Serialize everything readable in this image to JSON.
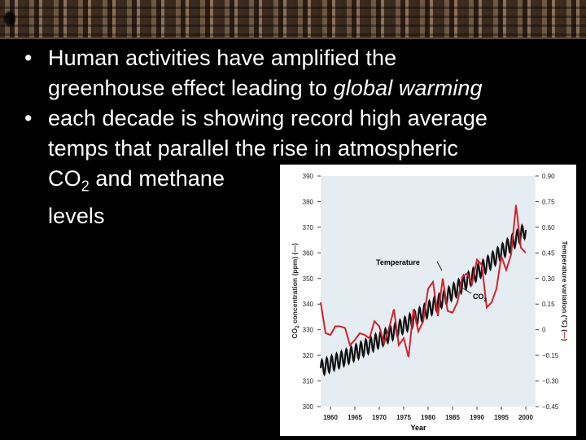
{
  "slide": {
    "bullets": [
      {
        "marker": "•",
        "line1": "Human activities have amplified the",
        "line2_plain": "greenhouse effect leading to ",
        "line2_italic": "global warming"
      },
      {
        "marker": "•",
        "line1": "each decade is showing record high average",
        "line2": "temps that parallel the rise in atmospheric",
        "line3_pre": "CO",
        "line3_sub": "2",
        "line3_post": " and methane",
        "line4": "levels"
      }
    ]
  },
  "chart_data": {
    "type": "line",
    "xlabel": "Year",
    "ylabel_left": "CO2 concentration (ppm) (—)",
    "ylabel_left_parts": [
      "CO",
      "2",
      " concentration (ppm) (",
      "—",
      ")"
    ],
    "ylabel_right_parts": [
      "Temperature variation (°C) (",
      "—",
      ")"
    ],
    "x_ticks": [
      "1960",
      "1965",
      "1970",
      "1975",
      "1980",
      "1985",
      "1990",
      "1995",
      "2000"
    ],
    "left_ticks": [
      "300",
      "310",
      "320",
      "330",
      "340",
      "350",
      "360",
      "370",
      "380",
      "390"
    ],
    "right_ticks": [
      "−0.45",
      "−0.30",
      "−0.15",
      "0",
      "0.15",
      "0.30",
      "0.45",
      "0.60",
      "0.75",
      "0.90"
    ],
    "xlim": [
      1958,
      2002
    ],
    "ylim_left": [
      300,
      390
    ],
    "ylim_right": [
      -0.45,
      0.9
    ],
    "annotation_temperature": "Temperature",
    "annotation_co2": "CO",
    "annotation_co2_sub": "2",
    "colors": {
      "plot_bg": "#e5edf3",
      "temperature": "#d2232a",
      "co2": "#111111",
      "axis_text": "#222222"
    },
    "series": [
      {
        "name": "Temperature",
        "axis": "right",
        "x": [
          1958,
          1959,
          1960,
          1961,
          1962,
          1963,
          1964,
          1965,
          1966,
          1967,
          1968,
          1969,
          1970,
          1971,
          1972,
          1973,
          1974,
          1975,
          1976,
          1977,
          1978,
          1979,
          1980,
          1981,
          1982,
          1983,
          1984,
          1985,
          1986,
          1987,
          1988,
          1989,
          1990,
          1991,
          1992,
          1993,
          1994,
          1995,
          1996,
          1997,
          1998,
          1999,
          2000
        ],
        "values": [
          0.16,
          -0.02,
          -0.03,
          0.02,
          0.02,
          0.01,
          -0.09,
          -0.06,
          -0.02,
          -0.03,
          -0.05,
          0.05,
          0.02,
          -0.08,
          0.01,
          0.12,
          -0.09,
          -0.05,
          -0.16,
          0.12,
          -0.01,
          0.05,
          0.24,
          0.28,
          0.08,
          0.3,
          0.11,
          0.1,
          0.16,
          0.31,
          0.33,
          0.27,
          0.41,
          0.38,
          0.13,
          0.16,
          0.24,
          0.43,
          0.35,
          0.44,
          0.73,
          0.48,
          0.45
        ]
      },
      {
        "name": "CO2",
        "axis": "left",
        "x_start": 1958,
        "x_end": 2000,
        "start_ppm": 315,
        "end_ppm": 369,
        "seasonal_amplitude_ppm": 3
      }
    ]
  }
}
